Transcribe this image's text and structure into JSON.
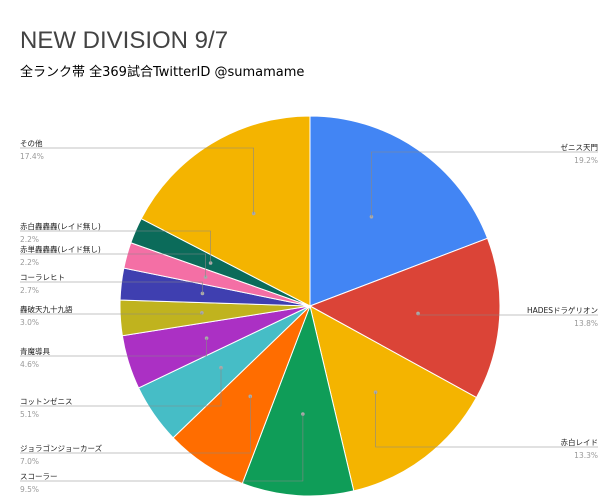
{
  "chart_data": {
    "type": "pie",
    "title": "NEW DIVISION 9/7",
    "subtitle": "全ランク帯 全369試合TwitterID @sumamame",
    "slices": [
      {
        "label": "ゼニス天門",
        "value": 19.2,
        "pct": "19.2%",
        "color": "#4285f4"
      },
      {
        "label": "HADESドラゲリオン",
        "value": 13.8,
        "pct": "13.8%",
        "color": "#db4437"
      },
      {
        "label": "赤白レイド",
        "value": 13.3,
        "pct": "13.3%",
        "color": "#f4b400"
      },
      {
        "label": "スコーラー",
        "value": 9.5,
        "pct": "9.5%",
        "color": "#0f9d58"
      },
      {
        "label": "ジョラゴンジョーカーズ",
        "value": 7.0,
        "pct": "7.0%",
        "color": "#ff6d00"
      },
      {
        "label": "コットンゼニス",
        "value": 5.1,
        "pct": "5.1%",
        "color": "#46bdc6"
      },
      {
        "label": "青魔導具",
        "value": 4.6,
        "pct": "4.6%",
        "color": "#ab30c4"
      },
      {
        "label": "轟破天九十九語",
        "value": 3.0,
        "pct": "3.0%",
        "color": "#c0b31e"
      },
      {
        "label": "コーラレヒト",
        "value": 2.7,
        "pct": "2.7%",
        "color": "#3f3fb0"
      },
      {
        "label": "赤単轟轟轟(レイド無し)",
        "value": 2.2,
        "pct": "2.2%",
        "color": "#f46fa5"
      },
      {
        "label": "赤白轟轟轟(レイド無し)",
        "value": 2.2,
        "pct": "2.2%",
        "color": "#0b6b5a"
      },
      {
        "label": "その他",
        "value": 17.4,
        "pct": "17.4%",
        "color": "#f4b400"
      }
    ]
  }
}
